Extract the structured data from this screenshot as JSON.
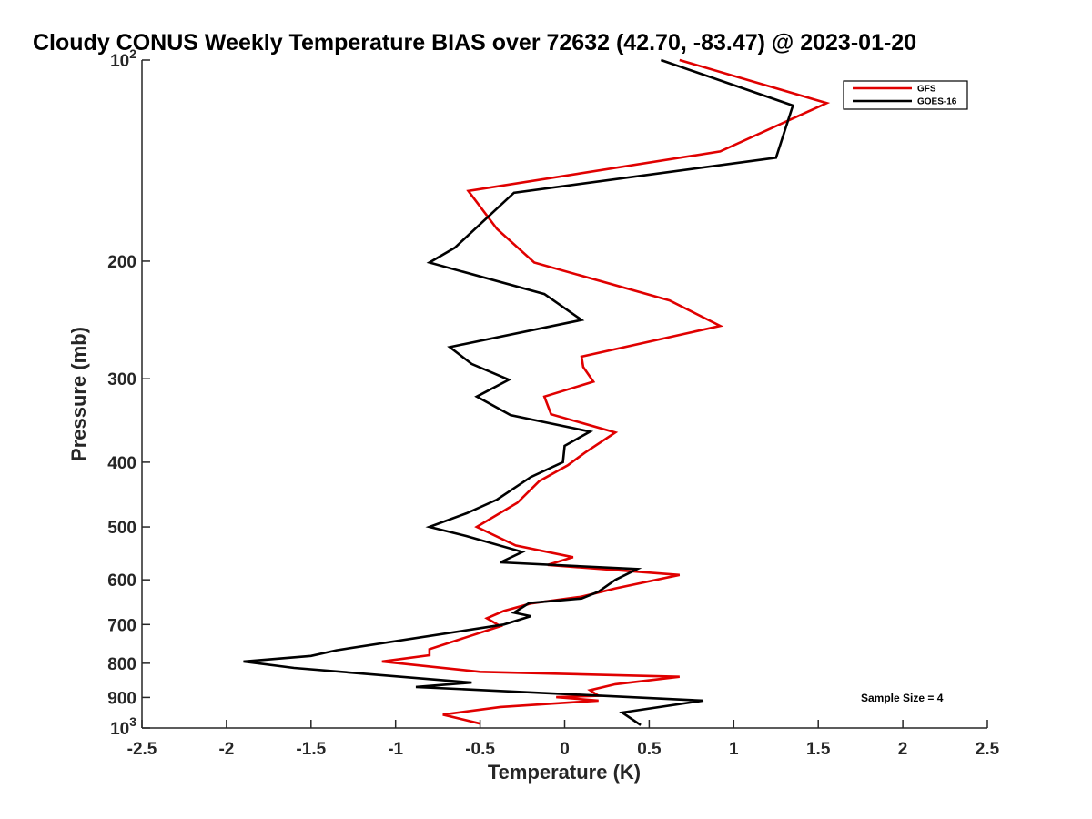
{
  "chart_data": {
    "type": "line",
    "title": "Cloudy CONUS Weekly Temperature BIAS over 72632 (42.70, -83.47) @ 2023-01-20",
    "xlabel": "Temperature (K)",
    "ylabel": "Pressure (mb)",
    "xlim": [
      -2.5,
      2.5
    ],
    "ylim": [
      100,
      1000
    ],
    "y_scale": "log",
    "y_reversed": true,
    "grid": false,
    "x_ticks": [
      "-2.5",
      "-2",
      "-1.5",
      "-1",
      "-0.5",
      "0",
      "0.5",
      "1",
      "1.5",
      "2",
      "2.5"
    ],
    "y_ticks": [
      {
        "value": 100,
        "label": "10",
        "sup": "2"
      },
      {
        "value": 200,
        "label": "200"
      },
      {
        "value": 300,
        "label": "300"
      },
      {
        "value": 400,
        "label": "400"
      },
      {
        "value": 500,
        "label": "500"
      },
      {
        "value": 600,
        "label": "600"
      },
      {
        "value": 700,
        "label": "700"
      },
      {
        "value": 800,
        "label": "800"
      },
      {
        "value": 900,
        "label": "900"
      },
      {
        "value": 1000,
        "label": "10",
        "sup": "3"
      }
    ],
    "legend_position": "top-right",
    "annotation": "Sample Size = 4",
    "series": [
      {
        "name": "GFS",
        "color": "#e00000",
        "points": [
          [
            0.68,
            100
          ],
          [
            1.55,
            116
          ],
          [
            0.92,
            137
          ],
          [
            -0.57,
            157
          ],
          [
            -0.4,
            179
          ],
          [
            -0.18,
            201
          ],
          [
            0.62,
            229
          ],
          [
            0.92,
            250
          ],
          [
            0.1,
            278
          ],
          [
            0.11,
            288
          ],
          [
            0.17,
            303
          ],
          [
            -0.12,
            319
          ],
          [
            -0.08,
            339
          ],
          [
            0.3,
            361
          ],
          [
            0.12,
            387
          ],
          [
            0.02,
            404
          ],
          [
            -0.15,
            427
          ],
          [
            -0.28,
            460
          ],
          [
            -0.52,
            500
          ],
          [
            -0.29,
            533
          ],
          [
            0.05,
            555
          ],
          [
            -0.1,
            570
          ],
          [
            0.68,
            590
          ],
          [
            0.3,
            618
          ],
          [
            0.1,
            636
          ],
          [
            -0.2,
            651
          ],
          [
            -0.36,
            668
          ],
          [
            -0.46,
            685
          ],
          [
            -0.38,
            704
          ],
          [
            -0.8,
            762
          ],
          [
            -0.8,
            778
          ],
          [
            -1.08,
            795
          ],
          [
            -0.5,
            824
          ],
          [
            0.68,
            838
          ],
          [
            0.3,
            860
          ],
          [
            0.15,
            878
          ],
          [
            0.2,
            895
          ],
          [
            -0.05,
            899
          ],
          [
            0.2,
            910
          ],
          [
            -0.38,
            930
          ],
          [
            -0.72,
            955
          ],
          [
            -0.5,
            985
          ]
        ]
      },
      {
        "name": "GOES-16",
        "color": "#000000",
        "points": [
          [
            0.57,
            100
          ],
          [
            1.35,
            117
          ],
          [
            1.25,
            140
          ],
          [
            -0.3,
            158
          ],
          [
            -0.65,
            191
          ],
          [
            -0.8,
            201
          ],
          [
            -0.12,
            224
          ],
          [
            0.1,
            245
          ],
          [
            -0.68,
            269
          ],
          [
            -0.55,
            285
          ],
          [
            -0.33,
            301
          ],
          [
            -0.52,
            319
          ],
          [
            -0.32,
            340
          ],
          [
            0.15,
            360
          ],
          [
            0,
            378
          ],
          [
            -0.01,
            400
          ],
          [
            -0.2,
            421
          ],
          [
            -0.4,
            455
          ],
          [
            -0.58,
            477
          ],
          [
            -0.8,
            500
          ],
          [
            -0.58,
            516
          ],
          [
            -0.25,
            545
          ],
          [
            -0.38,
            565
          ],
          [
            0.43,
            578
          ],
          [
            0.3,
            600
          ],
          [
            0.2,
            625
          ],
          [
            0.1,
            640
          ],
          [
            -0.21,
            650
          ],
          [
            -0.3,
            672
          ],
          [
            -0.2,
            680
          ],
          [
            -0.36,
            700
          ],
          [
            -1.35,
            765
          ],
          [
            -1.5,
            780
          ],
          [
            -1.9,
            795
          ],
          [
            -1.6,
            813
          ],
          [
            -0.55,
            855
          ],
          [
            -0.88,
            868
          ],
          [
            0.82,
            910
          ],
          [
            0.34,
            948
          ],
          [
            0.45,
            990
          ]
        ]
      }
    ]
  }
}
